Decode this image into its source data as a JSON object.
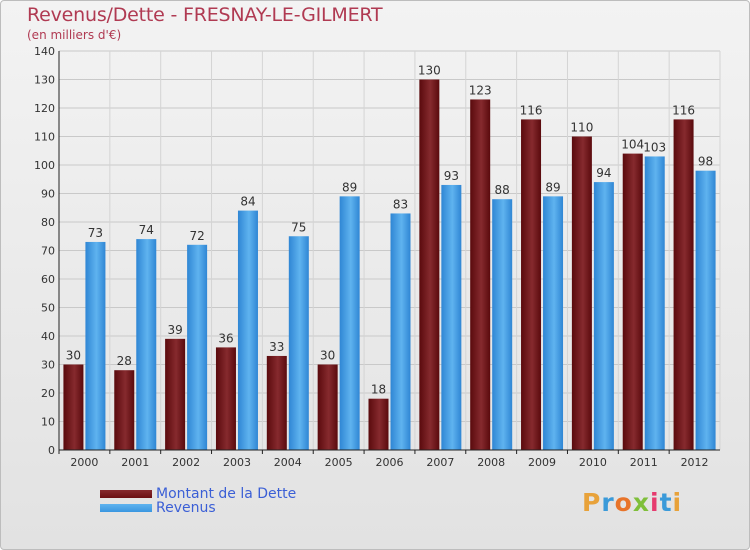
{
  "title": "Revenus/Dette - FRESNAY-LE-GILMERT",
  "subtitle": "(en milliers d'€)",
  "logo": {
    "text": "Proxiti"
  },
  "colors": {
    "dette": "#6b0f12",
    "revenus": "#3a96e0",
    "title": "#b03a52",
    "legend_text": "#3b5fd6"
  },
  "chart_data": {
    "type": "bar",
    "title": "Revenus/Dette - FRESNAY-LE-GILMERT",
    "subtitle": "(en milliers d'€)",
    "categories": [
      "2000",
      "2001",
      "2002",
      "2003",
      "2004",
      "2005",
      "2006",
      "2007",
      "2008",
      "2009",
      "2010",
      "2011",
      "2012"
    ],
    "series": [
      {
        "name": "Montant de la Dette",
        "color": "#6b0f12",
        "values": [
          30,
          28,
          39,
          36,
          33,
          30,
          18,
          130,
          123,
          116,
          110,
          104,
          116
        ]
      },
      {
        "name": "Revenus",
        "color": "#3a96e0",
        "values": [
          73,
          74,
          72,
          84,
          75,
          89,
          83,
          93,
          88,
          89,
          94,
          103,
          98
        ]
      }
    ],
    "ylim": [
      0,
      140
    ],
    "yticks": [
      0,
      10,
      20,
      30,
      40,
      50,
      60,
      70,
      80,
      90,
      100,
      110,
      120,
      130,
      140
    ],
    "grid": true,
    "legend_position": "bottom-left"
  }
}
